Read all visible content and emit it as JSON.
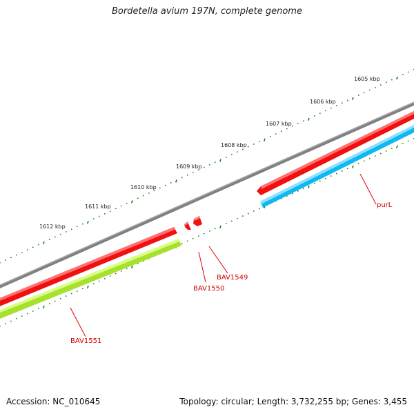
{
  "title": "Bordetella avium 197N, complete genome",
  "footer": {
    "accession": "Accession: NC_010645",
    "stats": "Topology: circular; Length: 3,732,255 bp; Genes: 3,455"
  },
  "scale_labels": [
    "1605 kbp",
    "1606 kbp",
    "1607 kbp",
    "1608 kbp",
    "1609 kbp",
    "1610 kbp",
    "1611 kbp",
    "1612 kbp"
  ],
  "genes": [
    {
      "name": "purL",
      "strand": "reverse",
      "color": "#f01010",
      "track": "red"
    },
    {
      "name": "purL",
      "strand": "reverse",
      "color": "#10b8f0",
      "track": "blue"
    },
    {
      "name": "BAV1549",
      "strand": "reverse",
      "color": "#f01010",
      "track": "red"
    },
    {
      "name": "BAV1550",
      "strand": "reverse",
      "color": "#f01010",
      "track": "red"
    },
    {
      "name": "BAV1551",
      "strand": "reverse",
      "color": "#f01010",
      "track": "red"
    },
    {
      "name": "BAV1551",
      "strand": "reverse",
      "color": "#a8e030",
      "track": "green"
    }
  ],
  "gene_labels": [
    "purL",
    "BAV1549",
    "BAV1550",
    "BAV1551"
  ],
  "colors": {
    "backbone": "#808080",
    "cds_red": "#f01010",
    "cds_blue": "#10b8f0",
    "cds_green": "#a8e030",
    "ticks": "#1a7a1a",
    "label_red": "#cc0000"
  }
}
